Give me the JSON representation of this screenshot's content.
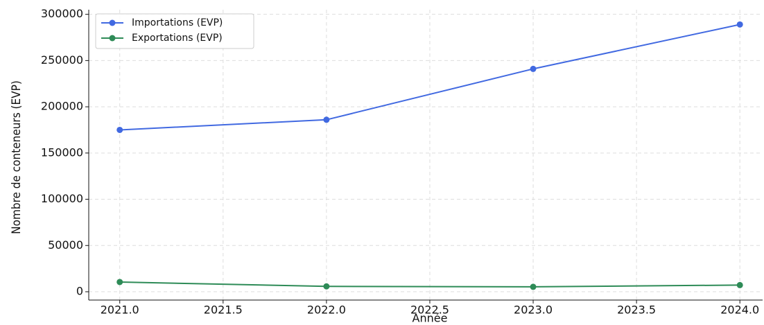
{
  "chart_data": {
    "type": "line",
    "xlabel": "Année",
    "ylabel": "Nombre de conteneurs (EVP)",
    "x": [
      2021,
      2022,
      2023,
      2024
    ],
    "series": [
      {
        "name": "Importations (EVP)",
        "color": "#4169e1",
        "values": [
          175000,
          186000,
          241000,
          289000
        ]
      },
      {
        "name": "Exportations (EVP)",
        "color": "#2e8b57",
        "values": [
          10500,
          5800,
          5300,
          7200
        ]
      }
    ],
    "xlim": [
      2020.85,
      2024.11
    ],
    "xticks": [
      {
        "value": 2021,
        "label": "2021.0"
      },
      2021.5,
      {
        "value": 2022,
        "label": "2022.0"
      },
      2022.5,
      {
        "value": 2023,
        "label": "2023.0"
      },
      2023.5,
      {
        "value": 2024,
        "label": "2024.0"
      }
    ],
    "ylim": [
      -9000,
      305000
    ],
    "yticks": [
      0,
      50000,
      100000,
      150000,
      200000,
      250000,
      300000
    ],
    "grid": true,
    "legend": "upper left"
  }
}
